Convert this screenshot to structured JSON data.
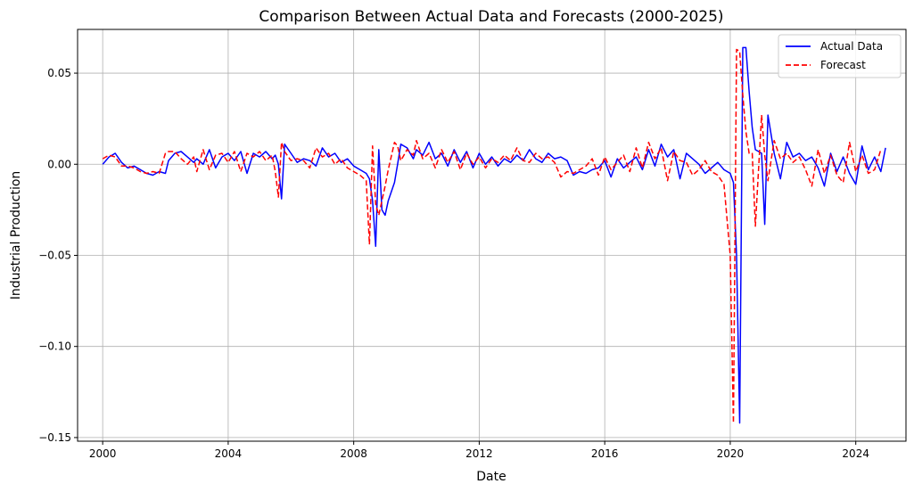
{
  "chart_data": {
    "type": "line",
    "title": "Comparison Between Actual Data and Forecasts (2000-2025)",
    "xlabel": "Date",
    "ylabel": "Industrial Production",
    "xlim": [
      1999.2,
      2025.6
    ],
    "ylim": [
      -0.152,
      0.074
    ],
    "x_ticks": [
      2000,
      2004,
      2008,
      2012,
      2016,
      2020,
      2024
    ],
    "x_tick_labels": [
      "2000",
      "2004",
      "2008",
      "2012",
      "2016",
      "2020",
      "2024"
    ],
    "y_ticks": [
      0.05,
      0.0,
      -0.05,
      -0.1,
      -0.15
    ],
    "y_tick_labels": [
      "0.05",
      "0.00",
      "−0.05",
      "−0.10",
      "−0.15"
    ],
    "grid": true,
    "legend_position": "top-right",
    "x_unit": "year",
    "series": [
      {
        "name": "Actual Data",
        "color": "#0000ff",
        "style": "solid",
        "points": [
          [
            2000.0,
            0.0
          ],
          [
            2000.2,
            0.004
          ],
          [
            2000.4,
            0.006
          ],
          [
            2000.6,
            0.001
          ],
          [
            2000.8,
            -0.002
          ],
          [
            2001.0,
            -0.001
          ],
          [
            2001.2,
            -0.003
          ],
          [
            2001.4,
            -0.005
          ],
          [
            2001.6,
            -0.006
          ],
          [
            2001.8,
            -0.004
          ],
          [
            2002.0,
            -0.005
          ],
          [
            2002.1,
            0.002
          ],
          [
            2002.3,
            0.006
          ],
          [
            2002.5,
            0.007
          ],
          [
            2002.7,
            0.004
          ],
          [
            2002.9,
            0.001
          ],
          [
            2003.0,
            0.003
          ],
          [
            2003.2,
            0.0
          ],
          [
            2003.4,
            0.008
          ],
          [
            2003.6,
            -0.002
          ],
          [
            2003.8,
            0.004
          ],
          [
            2004.0,
            0.006
          ],
          [
            2004.2,
            0.002
          ],
          [
            2004.4,
            0.007
          ],
          [
            2004.6,
            -0.005
          ],
          [
            2004.8,
            0.006
          ],
          [
            2005.0,
            0.004
          ],
          [
            2005.2,
            0.007
          ],
          [
            2005.4,
            0.003
          ],
          [
            2005.5,
            0.005
          ],
          [
            2005.6,
            0.0
          ],
          [
            2005.7,
            -0.019
          ],
          [
            2005.8,
            0.011
          ],
          [
            2006.0,
            0.006
          ],
          [
            2006.2,
            0.001
          ],
          [
            2006.4,
            0.003
          ],
          [
            2006.6,
            0.002
          ],
          [
            2006.8,
            -0.001
          ],
          [
            2007.0,
            0.009
          ],
          [
            2007.2,
            0.004
          ],
          [
            2007.4,
            0.006
          ],
          [
            2007.6,
            0.001
          ],
          [
            2007.8,
            0.003
          ],
          [
            2008.0,
            -0.001
          ],
          [
            2008.2,
            -0.003
          ],
          [
            2008.4,
            -0.005
          ],
          [
            2008.5,
            -0.008
          ],
          [
            2008.6,
            -0.02
          ],
          [
            2008.7,
            -0.045
          ],
          [
            2008.8,
            0.008
          ],
          [
            2008.9,
            -0.025
          ],
          [
            2009.0,
            -0.028
          ],
          [
            2009.1,
            -0.02
          ],
          [
            2009.3,
            -0.01
          ],
          [
            2009.4,
            0.0
          ],
          [
            2009.5,
            0.011
          ],
          [
            2009.7,
            0.009
          ],
          [
            2009.9,
            0.003
          ],
          [
            2010.0,
            0.008
          ],
          [
            2010.2,
            0.005
          ],
          [
            2010.4,
            0.012
          ],
          [
            2010.6,
            0.003
          ],
          [
            2010.8,
            0.006
          ],
          [
            2011.0,
            -0.001
          ],
          [
            2011.2,
            0.008
          ],
          [
            2011.4,
            0.001
          ],
          [
            2011.6,
            0.007
          ],
          [
            2011.8,
            -0.002
          ],
          [
            2012.0,
            0.006
          ],
          [
            2012.2,
            0.0
          ],
          [
            2012.4,
            0.004
          ],
          [
            2012.6,
            -0.001
          ],
          [
            2012.8,
            0.003
          ],
          [
            2013.0,
            0.001
          ],
          [
            2013.2,
            0.005
          ],
          [
            2013.4,
            0.002
          ],
          [
            2013.6,
            0.008
          ],
          [
            2013.8,
            0.003
          ],
          [
            2014.0,
            0.001
          ],
          [
            2014.2,
            0.006
          ],
          [
            2014.4,
            0.003
          ],
          [
            2014.6,
            0.004
          ],
          [
            2014.8,
            0.002
          ],
          [
            2015.0,
            -0.006
          ],
          [
            2015.2,
            -0.004
          ],
          [
            2015.4,
            -0.005
          ],
          [
            2015.6,
            -0.003
          ],
          [
            2015.8,
            -0.002
          ],
          [
            2016.0,
            0.002
          ],
          [
            2016.2,
            -0.007
          ],
          [
            2016.4,
            0.003
          ],
          [
            2016.6,
            -0.002
          ],
          [
            2016.8,
            0.001
          ],
          [
            2017.0,
            0.004
          ],
          [
            2017.2,
            -0.003
          ],
          [
            2017.4,
            0.008
          ],
          [
            2017.6,
            -0.001
          ],
          [
            2017.8,
            0.011
          ],
          [
            2018.0,
            0.004
          ],
          [
            2018.2,
            0.008
          ],
          [
            2018.4,
            -0.008
          ],
          [
            2018.6,
            0.006
          ],
          [
            2018.8,
            0.003
          ],
          [
            2019.0,
            0.0
          ],
          [
            2019.2,
            -0.005
          ],
          [
            2019.4,
            -0.002
          ],
          [
            2019.6,
            0.001
          ],
          [
            2019.8,
            -0.003
          ],
          [
            2020.0,
            -0.005
          ],
          [
            2020.1,
            -0.01
          ],
          [
            2020.2,
            -0.05
          ],
          [
            2020.3,
            -0.142
          ],
          [
            2020.4,
            0.064
          ],
          [
            2020.5,
            0.064
          ],
          [
            2020.6,
            0.04
          ],
          [
            2020.7,
            0.02
          ],
          [
            2020.8,
            0.008
          ],
          [
            2021.0,
            0.006
          ],
          [
            2021.1,
            -0.033
          ],
          [
            2021.2,
            0.027
          ],
          [
            2021.4,
            0.006
          ],
          [
            2021.6,
            -0.008
          ],
          [
            2021.8,
            0.012
          ],
          [
            2022.0,
            0.004
          ],
          [
            2022.2,
            0.006
          ],
          [
            2022.4,
            0.002
          ],
          [
            2022.6,
            0.004
          ],
          [
            2022.8,
            -0.002
          ],
          [
            2023.0,
            -0.012
          ],
          [
            2023.2,
            0.006
          ],
          [
            2023.4,
            -0.004
          ],
          [
            2023.6,
            0.004
          ],
          [
            2023.8,
            -0.005
          ],
          [
            2024.0,
            -0.011
          ],
          [
            2024.2,
            0.01
          ],
          [
            2024.4,
            -0.003
          ],
          [
            2024.6,
            0.004
          ],
          [
            2024.8,
            -0.004
          ],
          [
            2024.95,
            0.009
          ]
        ]
      },
      {
        "name": "Forecast",
        "color": "#ff0000",
        "style": "dashed",
        "points": [
          [
            2000.0,
            0.003
          ],
          [
            2000.2,
            0.005
          ],
          [
            2000.4,
            0.004
          ],
          [
            2000.6,
            -0.001
          ],
          [
            2000.8,
            -0.001
          ],
          [
            2001.0,
            -0.002
          ],
          [
            2001.2,
            -0.004
          ],
          [
            2001.4,
            -0.005
          ],
          [
            2001.6,
            -0.004
          ],
          [
            2001.8,
            -0.005
          ],
          [
            2002.0,
            0.006
          ],
          [
            2002.1,
            0.007
          ],
          [
            2002.3,
            0.007
          ],
          [
            2002.5,
            0.003
          ],
          [
            2002.7,
            0.0
          ],
          [
            2002.9,
            0.004
          ],
          [
            2003.0,
            -0.004
          ],
          [
            2003.2,
            0.008
          ],
          [
            2003.4,
            -0.003
          ],
          [
            2003.6,
            0.005
          ],
          [
            2003.8,
            0.006
          ],
          [
            2004.0,
            0.001
          ],
          [
            2004.2,
            0.007
          ],
          [
            2004.4,
            -0.004
          ],
          [
            2004.6,
            0.006
          ],
          [
            2004.8,
            0.004
          ],
          [
            2005.0,
            0.007
          ],
          [
            2005.2,
            0.002
          ],
          [
            2005.4,
            0.005
          ],
          [
            2005.5,
            -0.004
          ],
          [
            2005.6,
            -0.018
          ],
          [
            2005.7,
            0.012
          ],
          [
            2005.8,
            0.007
          ],
          [
            2006.0,
            0.002
          ],
          [
            2006.2,
            0.003
          ],
          [
            2006.4,
            0.002
          ],
          [
            2006.6,
            -0.002
          ],
          [
            2006.8,
            0.009
          ],
          [
            2007.0,
            0.004
          ],
          [
            2007.2,
            0.006
          ],
          [
            2007.4,
            0.0
          ],
          [
            2007.6,
            0.003
          ],
          [
            2007.8,
            -0.002
          ],
          [
            2008.0,
            -0.004
          ],
          [
            2008.2,
            -0.006
          ],
          [
            2008.4,
            -0.009
          ],
          [
            2008.5,
            -0.044
          ],
          [
            2008.6,
            0.01
          ],
          [
            2008.7,
            -0.022
          ],
          [
            2008.8,
            -0.028
          ],
          [
            2008.9,
            -0.02
          ],
          [
            2009.0,
            -0.012
          ],
          [
            2009.1,
            -0.003
          ],
          [
            2009.3,
            0.012
          ],
          [
            2009.4,
            0.01
          ],
          [
            2009.5,
            0.002
          ],
          [
            2009.7,
            0.008
          ],
          [
            2009.9,
            0.005
          ],
          [
            2010.0,
            0.013
          ],
          [
            2010.2,
            0.003
          ],
          [
            2010.4,
            0.006
          ],
          [
            2010.6,
            -0.002
          ],
          [
            2010.8,
            0.008
          ],
          [
            2011.0,
            0.001
          ],
          [
            2011.2,
            0.007
          ],
          [
            2011.4,
            -0.003
          ],
          [
            2011.6,
            0.006
          ],
          [
            2011.8,
            0.0
          ],
          [
            2012.0,
            0.004
          ],
          [
            2012.2,
            -0.002
          ],
          [
            2012.4,
            0.003
          ],
          [
            2012.6,
            0.001
          ],
          [
            2012.8,
            0.005
          ],
          [
            2013.0,
            0.002
          ],
          [
            2013.2,
            0.009
          ],
          [
            2013.4,
            0.002
          ],
          [
            2013.6,
            0.001
          ],
          [
            2013.8,
            0.006
          ],
          [
            2014.0,
            0.003
          ],
          [
            2014.2,
            0.004
          ],
          [
            2014.4,
            0.001
          ],
          [
            2014.6,
            -0.007
          ],
          [
            2014.8,
            -0.004
          ],
          [
            2015.0,
            -0.005
          ],
          [
            2015.2,
            -0.003
          ],
          [
            2015.4,
            -0.001
          ],
          [
            2015.6,
            0.003
          ],
          [
            2015.8,
            -0.006
          ],
          [
            2016.0,
            0.004
          ],
          [
            2016.2,
            -0.003
          ],
          [
            2016.4,
            0.001
          ],
          [
            2016.6,
            0.005
          ],
          [
            2016.8,
            -0.004
          ],
          [
            2017.0,
            0.009
          ],
          [
            2017.2,
            -0.002
          ],
          [
            2017.4,
            0.012
          ],
          [
            2017.6,
            0.003
          ],
          [
            2017.8,
            0.009
          ],
          [
            2018.0,
            -0.009
          ],
          [
            2018.2,
            0.007
          ],
          [
            2018.4,
            0.002
          ],
          [
            2018.6,
            0.001
          ],
          [
            2018.8,
            -0.006
          ],
          [
            2019.0,
            -0.003
          ],
          [
            2019.2,
            0.002
          ],
          [
            2019.4,
            -0.004
          ],
          [
            2019.6,
            -0.006
          ],
          [
            2019.8,
            -0.011
          ],
          [
            2020.0,
            -0.05
          ],
          [
            2020.1,
            -0.142
          ],
          [
            2020.2,
            0.063
          ],
          [
            2020.3,
            0.062
          ],
          [
            2020.4,
            0.038
          ],
          [
            2020.5,
            0.018
          ],
          [
            2020.6,
            0.006
          ],
          [
            2020.7,
            0.006
          ],
          [
            2020.8,
            -0.034
          ],
          [
            2021.0,
            0.027
          ],
          [
            2021.1,
            0.005
          ],
          [
            2021.2,
            -0.009
          ],
          [
            2021.4,
            0.013
          ],
          [
            2021.6,
            0.003
          ],
          [
            2021.8,
            0.006
          ],
          [
            2022.0,
            0.001
          ],
          [
            2022.2,
            0.004
          ],
          [
            2022.4,
            -0.003
          ],
          [
            2022.6,
            -0.012
          ],
          [
            2022.8,
            0.008
          ],
          [
            2023.0,
            -0.005
          ],
          [
            2023.2,
            0.005
          ],
          [
            2023.4,
            -0.006
          ],
          [
            2023.6,
            -0.01
          ],
          [
            2023.8,
            0.012
          ],
          [
            2024.0,
            -0.004
          ],
          [
            2024.2,
            0.005
          ],
          [
            2024.4,
            -0.005
          ],
          [
            2024.6,
            -0.003
          ],
          [
            2024.8,
            0.008
          ]
        ]
      }
    ]
  }
}
